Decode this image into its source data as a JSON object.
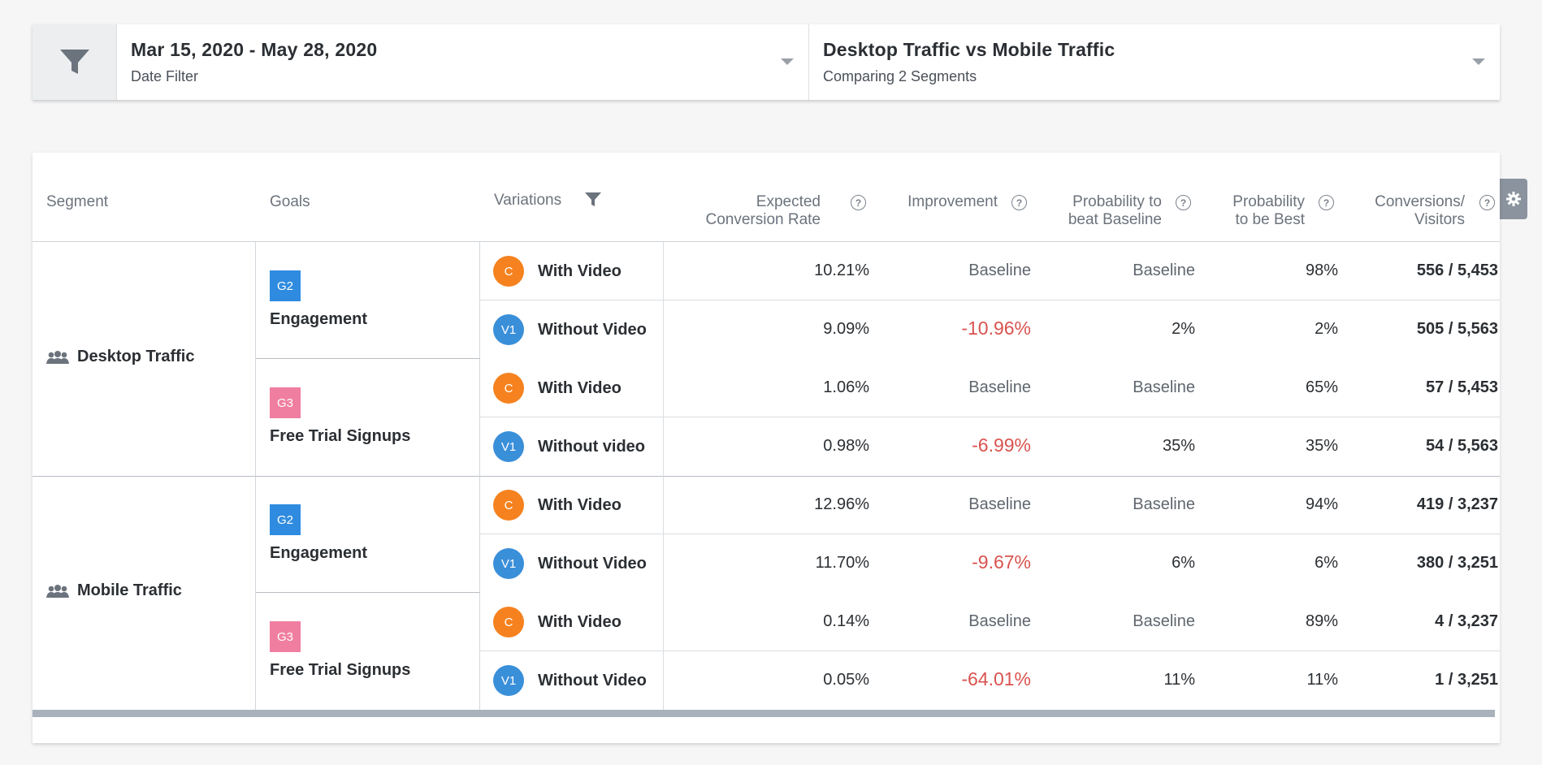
{
  "filters": {
    "date": {
      "title": "Mar 15, 2020 - May 28, 2020",
      "subtitle": "Date Filter"
    },
    "segments": {
      "title": "Desktop Traffic vs Mobile Traffic",
      "subtitle": "Comparing 2 Segments"
    }
  },
  "table": {
    "headers": {
      "segment": "Segment",
      "goals": "Goals",
      "variations": "Variations",
      "ecr_1": "Expected",
      "ecr_2": "Conversion Rate",
      "improvement": "Improvement",
      "pbb_1": "Probability to",
      "pbb_2": "beat Baseline",
      "ptb_1": "Probability",
      "ptb_2": "to be Best",
      "cv_1": "Conversions/",
      "cv_2": "Visitors",
      "help": "?"
    },
    "segments": [
      {
        "name": "Desktop Traffic",
        "goals": [
          {
            "badge": "G2",
            "badge_color": "#2f8be0",
            "name": "Engagement",
            "rows": [
              {
                "avatar": "C",
                "avatar_color": "#f5821f",
                "variation": "With Video",
                "ecr": "10.21%",
                "improvement": "Baseline",
                "pbb": "Baseline",
                "ptb": "98%",
                "cv": "556 / 5,453"
              },
              {
                "avatar": "V1",
                "avatar_color": "#3a8fd9",
                "variation": "Without Video",
                "ecr": "9.09%",
                "improvement": "-10.96%",
                "pbb": "2%",
                "ptb": "2%",
                "cv": "505 / 5,563"
              }
            ]
          },
          {
            "badge": "G3",
            "badge_color": "#f07ea0",
            "name": "Free Trial Signups",
            "rows": [
              {
                "avatar": "C",
                "avatar_color": "#f5821f",
                "variation": "With Video",
                "ecr": "1.06%",
                "improvement": "Baseline",
                "pbb": "Baseline",
                "ptb": "65%",
                "cv": "57 / 5,453"
              },
              {
                "avatar": "V1",
                "avatar_color": "#3a8fd9",
                "variation": "Without video",
                "ecr": "0.98%",
                "improvement": "-6.99%",
                "pbb": "35%",
                "ptb": "35%",
                "cv": "54 / 5,563"
              }
            ]
          }
        ]
      },
      {
        "name": "Mobile Traffic",
        "goals": [
          {
            "badge": "G2",
            "badge_color": "#2f8be0",
            "name": "Engagement",
            "rows": [
              {
                "avatar": "C",
                "avatar_color": "#f5821f",
                "variation": "With Video",
                "ecr": "12.96%",
                "improvement": "Baseline",
                "pbb": "Baseline",
                "ptb": "94%",
                "cv": "419 / 3,237"
              },
              {
                "avatar": "V1",
                "avatar_color": "#3a8fd9",
                "variation": "Without Video",
                "ecr": "11.70%",
                "improvement": "-9.67%",
                "pbb": "6%",
                "ptb": "6%",
                "cv": "380 / 3,251"
              }
            ]
          },
          {
            "badge": "G3",
            "badge_color": "#f07ea0",
            "name": "Free Trial Signups",
            "rows": [
              {
                "avatar": "C",
                "avatar_color": "#f5821f",
                "variation": "With Video",
                "ecr": "0.14%",
                "improvement": "Baseline",
                "pbb": "Baseline",
                "ptb": "89%",
                "cv": "4 / 3,237"
              },
              {
                "avatar": "V1",
                "avatar_color": "#3a8fd9",
                "variation": "Without Video",
                "ecr": "0.05%",
                "improvement": "-64.01%",
                "pbb": "11%",
                "ptb": "11%",
                "cv": "1 / 3,251"
              }
            ]
          }
        ]
      }
    ]
  },
  "icons": {
    "filter": "filter-funnel-icon",
    "segment": "users-group-icon",
    "settings": "gear-icon",
    "help": "question-circle-icon",
    "dropdown": "chevron-down-icon"
  },
  "colors": {
    "negative": "#d9534f",
    "control_avatar": "#f5821f",
    "variation_avatar": "#3a8fd9"
  }
}
